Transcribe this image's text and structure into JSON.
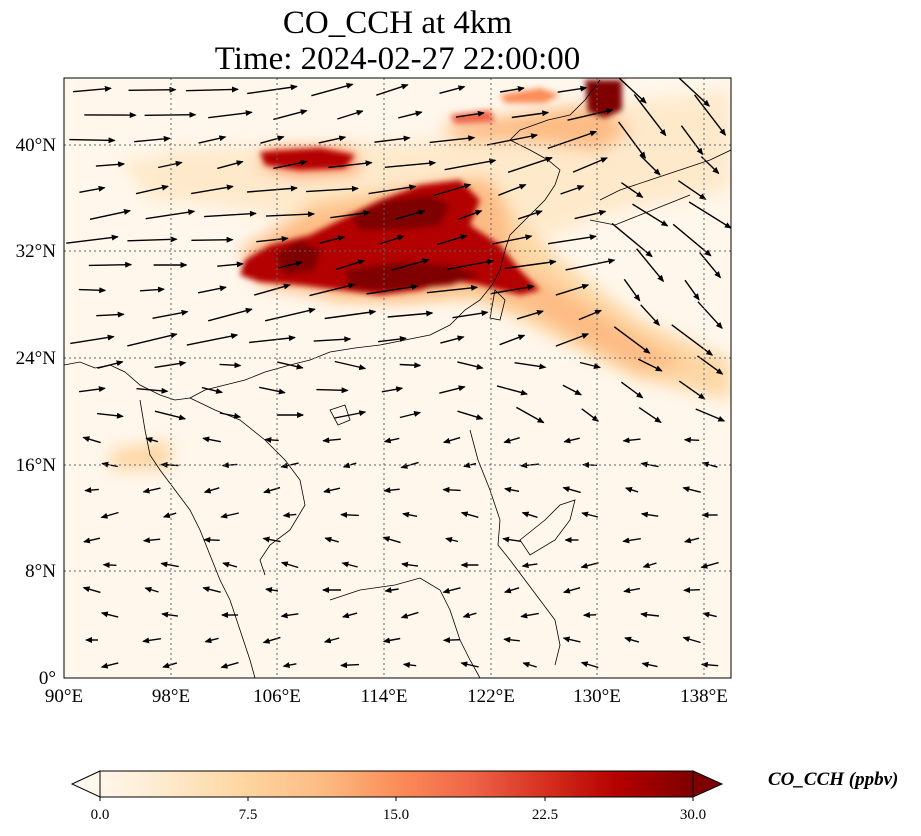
{
  "title": "CO_CCH at 4km",
  "subtitle": "Time: 2024-02-27 22:00:00",
  "map": {
    "lon_range": [
      90,
      140
    ],
    "lat_range": [
      0,
      45
    ],
    "lon_ticks": [
      "90°E",
      "98°E",
      "106°E",
      "114°E",
      "122°E",
      "130°E",
      "138°E"
    ],
    "lat_ticks": [
      "0°",
      "8°N",
      "16°N",
      "24°N",
      "32°N",
      "40°N"
    ],
    "gridlines": true,
    "colormap": "OrRd",
    "overlay": "wind vectors"
  },
  "colorbar": {
    "label": "CO_CCH (ppbv)",
    "ticks": [
      "0.0",
      "7.5",
      "15.0",
      "22.5",
      "30.0"
    ],
    "range": [
      0,
      30
    ],
    "extend": "both",
    "colors": [
      "#fff7ec",
      "#fee8c8",
      "#fdd49e",
      "#fdbb84",
      "#fc8d59",
      "#ef6548",
      "#d7301f",
      "#b30000",
      "#7f0000"
    ]
  }
}
